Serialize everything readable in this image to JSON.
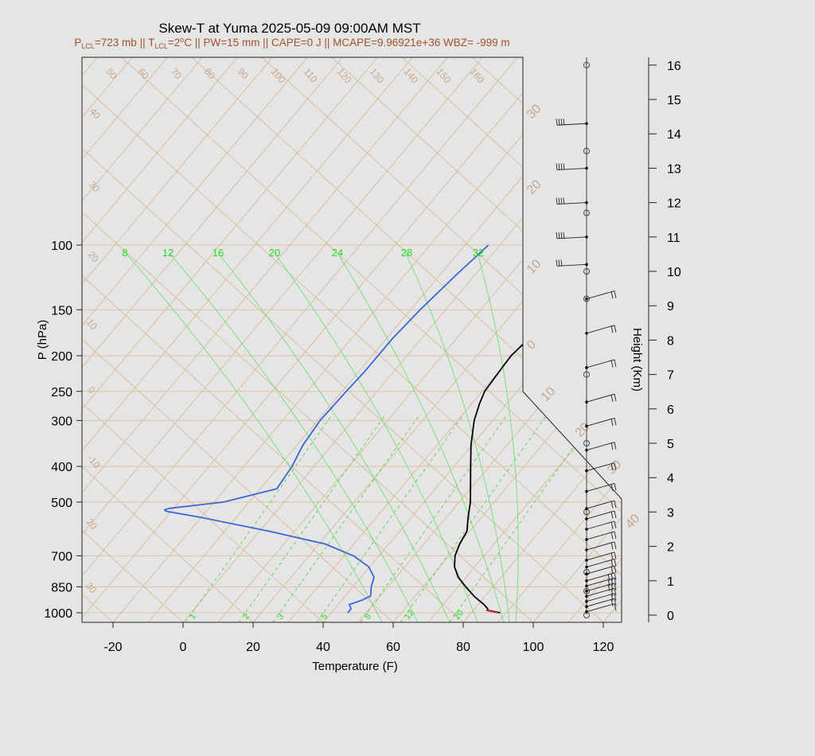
{
  "title": "Skew-T at Yuma 2025-05-09 09:00AM MST",
  "subtitle": {
    "p_lcl_label": "P",
    "p_lcl_sub": "LCL",
    "p_lcl_value": "=723 mb",
    "sep1": " || ",
    "t_lcl_label": "T",
    "t_lcl_sub": "LCL",
    "t_lcl_value": "=2",
    "t_lcl_sup": "o",
    "t_lcl_unit": "C",
    "rest": " || PW=15 mm || CAPE=0 J || MCAPE=9.96921e+36 WBZ= -999 m"
  },
  "chart_data": {
    "type": "line",
    "xlabel": "Temperature (F)",
    "ylabel": "P (hPa)",
    "right_axis_label": "Height (Km)",
    "x_ticks": [
      -20,
      0,
      20,
      40,
      60,
      80,
      100,
      120
    ],
    "pressure_ticks": [
      100,
      150,
      200,
      250,
      300,
      400,
      500,
      700,
      850,
      1000
    ],
    "height_ticks": [
      0,
      1,
      2,
      3,
      4,
      5,
      6,
      7,
      8,
      9,
      10,
      11,
      12,
      13,
      14,
      15,
      16
    ],
    "isotherm_labels": [
      "50",
      "60",
      "70",
      "80",
      "90",
      "100",
      "110",
      "120",
      "130",
      "140",
      "150",
      "160",
      "40",
      "30",
      "20",
      "10",
      "0",
      "-10",
      "20",
      "30"
    ],
    "isotherm_right_labels": [
      "30",
      "20",
      "10",
      "0",
      "10",
      "20",
      "30",
      "40"
    ],
    "mixing_ratio_labels": [
      "1",
      "2",
      "3",
      "5",
      "8",
      "12",
      "20"
    ],
    "theta_e_labels": [
      "8",
      "12",
      "16",
      "20",
      "24",
      "28",
      "32"
    ],
    "series": [
      {
        "name": "temperature",
        "color": "#000000",
        "points": [
          [
            1000,
            90.5
          ],
          [
            985,
            86.5
          ],
          [
            975,
            86.0
          ],
          [
            950,
            84.0
          ],
          [
            925,
            81.5
          ],
          [
            900,
            79.0
          ],
          [
            850,
            74.5
          ],
          [
            800,
            70.0
          ],
          [
            750,
            66.5
          ],
          [
            700,
            64.0
          ],
          [
            650,
            62.5
          ],
          [
            600,
            61.5
          ],
          [
            550,
            58.5
          ],
          [
            500,
            55.5
          ],
          [
            450,
            51.5
          ],
          [
            400,
            47.0
          ],
          [
            350,
            42.0
          ],
          [
            300,
            37.0
          ],
          [
            270,
            34.5
          ],
          [
            250,
            33.0
          ],
          [
            225,
            32.5
          ],
          [
            200,
            32.0
          ],
          [
            170,
            33.5
          ],
          [
            150,
            35.5
          ],
          [
            130,
            36.5
          ],
          [
            115,
            37.5
          ],
          [
            100,
            38.5
          ]
        ]
      },
      {
        "name": "dewpoint",
        "color": "#3a66d8",
        "points": [
          [
            1000,
            47.0
          ],
          [
            975,
            47.0
          ],
          [
            950,
            45.5
          ],
          [
            925,
            48.0
          ],
          [
            900,
            49.5
          ],
          [
            850,
            47.5
          ],
          [
            800,
            46.0
          ],
          [
            750,
            42.0
          ],
          [
            700,
            35.0
          ],
          [
            650,
            24.0
          ],
          [
            600,
            5.0
          ],
          [
            550,
            -18.0
          ],
          [
            530,
            -29.0
          ],
          [
            525,
            -30.0
          ],
          [
            520,
            -29.0
          ],
          [
            500,
            -15.0
          ],
          [
            460,
            -3.0
          ],
          [
            400,
            -4.0
          ],
          [
            350,
            -6.0
          ],
          [
            300,
            -7.0
          ],
          [
            250,
            -6.5
          ],
          [
            220,
            -6.0
          ],
          [
            200,
            -6.0
          ],
          [
            180,
            -6.0
          ],
          [
            150,
            -5.0
          ],
          [
            120,
            -3.0
          ],
          [
            100,
            -1.0
          ]
        ]
      },
      {
        "name": "parcel",
        "color": "#cc2020",
        "points": [
          [
            1000,
            90.0
          ],
          [
            985,
            86.0
          ]
        ]
      }
    ],
    "winds": [
      {
        "height_km": 0.1,
        "barbs": 1
      },
      {
        "height_km": 0.25,
        "barbs": 2
      },
      {
        "height_km": 0.4,
        "barbs": 2
      },
      {
        "height_km": 0.55,
        "barbs": 2
      },
      {
        "height_km": 0.7,
        "barbs": 3
      },
      {
        "height_km": 0.85,
        "barbs": 3
      },
      {
        "height_km": 1.0,
        "barbs": 3
      },
      {
        "height_km": 1.2,
        "barbs": 2
      },
      {
        "height_km": 1.4,
        "barbs": 2
      },
      {
        "height_km": 1.6,
        "barbs": 2
      },
      {
        "height_km": 1.9,
        "barbs": 2
      },
      {
        "height_km": 2.2,
        "barbs": 2
      },
      {
        "height_km": 2.5,
        "barbs": 2
      },
      {
        "height_km": 2.8,
        "barbs": 2
      },
      {
        "height_km": 3.1,
        "barbs": 2
      },
      {
        "height_km": 3.6,
        "barbs": 2
      },
      {
        "height_km": 4.2,
        "barbs": 2
      },
      {
        "height_km": 4.8,
        "barbs": 2
      },
      {
        "height_km": 5.5,
        "barbs": 2
      },
      {
        "height_km": 6.2,
        "barbs": 2
      },
      {
        "height_km": 7.2,
        "barbs": 2
      },
      {
        "height_km": 8.2,
        "barbs": 2
      },
      {
        "height_km": 9.2,
        "barbs": 2
      },
      {
        "height_km": 10.2,
        "barbs": 3
      },
      {
        "height_km": 11.0,
        "barbs": 4
      },
      {
        "height_km": 12.0,
        "barbs": 4
      },
      {
        "height_km": 13.0,
        "barbs": 4
      },
      {
        "height_km": 14.3,
        "barbs": 4
      }
    ]
  }
}
